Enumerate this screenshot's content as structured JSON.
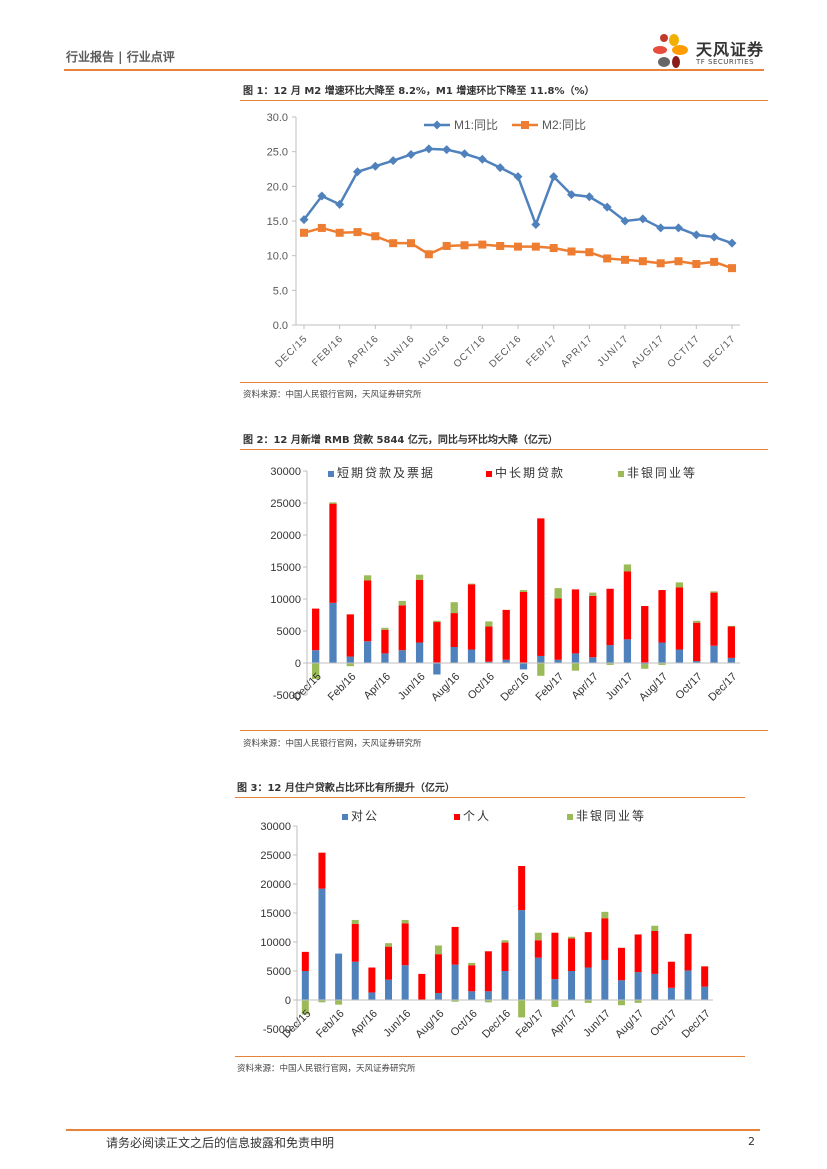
{
  "header": {
    "breadcrumb": "行业报告 | 行业点评",
    "logo_cn": "天风证券",
    "logo_en": "TF SECURITIES"
  },
  "footer": {
    "disclaimer": "请务必阅读正文之后的信息披露和免责申明",
    "page": "2"
  },
  "colors": {
    "accent": "#e8823a",
    "blue": "#4f81bd",
    "orange": "#ed7d31",
    "red": "#ff0000",
    "green": "#9bbb59"
  },
  "figures": [
    {
      "title": "图 1：12 月 M2 增速环比大降至 8.2%，M1 增速环比下降至 11.8%（%）",
      "source": "资料来源：中国人民银行官网，天风证券研究所"
    },
    {
      "title": "图 2：12 月新增 RMB 贷款 5844 亿元，同比与环比均大降（亿元）",
      "source": "资料来源：中国人民银行官网，天风证券研究所"
    },
    {
      "title": "图 3：12 月住户贷款占比环比有所提升（亿元）",
      "source": "资料来源：中国人民银行官网，天风证券研究所"
    }
  ],
  "chart_data": [
    {
      "type": "line",
      "title": "",
      "x_tick_labels": [
        "DEC/15",
        "FEB/16",
        "APR/16",
        "JUN/16",
        "AUG/16",
        "OCT/16",
        "DEC/16",
        "FEB/17",
        "APR/17",
        "JUN/17",
        "AUG/17",
        "OCT/17",
        "DEC/17"
      ],
      "y_tick_labels": [
        "0.0",
        "5.0",
        "10.0",
        "15.0",
        "20.0",
        "25.0",
        "30.0"
      ],
      "ylim": [
        0,
        30
      ],
      "series": [
        {
          "name": "M1:同比",
          "values": [
            15.2,
            18.6,
            17.4,
            22.1,
            22.9,
            23.7,
            24.6,
            25.4,
            25.3,
            24.7,
            23.9,
            22.7,
            21.4,
            14.5,
            21.4,
            18.8,
            18.5,
            17.0,
            15.0,
            15.3,
            14.0,
            14.0,
            13.0,
            12.7,
            11.8
          ]
        },
        {
          "name": "M2:同比",
          "values": [
            13.3,
            14.0,
            13.3,
            13.4,
            12.8,
            11.8,
            11.8,
            10.2,
            11.4,
            11.5,
            11.6,
            11.4,
            11.3,
            11.3,
            11.1,
            10.6,
            10.5,
            9.6,
            9.4,
            9.2,
            8.9,
            9.2,
            8.8,
            9.1,
            8.2
          ]
        }
      ]
    },
    {
      "type": "bar",
      "stacked": true,
      "x_tick_labels": [
        "Dec/15",
        "Feb/16",
        "Apr/16",
        "Jun/16",
        "Aug/16",
        "Oct/16",
        "Dec/16",
        "Feb/17",
        "Apr/17",
        "Jun/17",
        "Aug/17",
        "Oct/17",
        "Dec/17"
      ],
      "y_tick_labels": [
        "-5000",
        "0",
        "5000",
        "10000",
        "15000",
        "20000",
        "25000",
        "30000"
      ],
      "ylim": [
        -5000,
        30000
      ],
      "series": [
        {
          "name": "短期贷款及票据",
          "values": [
            2000,
            9400,
            1000,
            3400,
            1500,
            2000,
            3200,
            -1800,
            2500,
            2100,
            200,
            500,
            -1000,
            1100,
            500,
            1500,
            900,
            2800,
            3700,
            -200,
            3200,
            2100,
            300,
            2700,
            800
          ]
        },
        {
          "name": "中长期贷款",
          "values": [
            6500,
            15500,
            6600,
            9500,
            3700,
            7000,
            9800,
            6400,
            5300,
            10200,
            5500,
            7800,
            11100,
            21500,
            9600,
            10000,
            9600,
            8800,
            10600,
            8900,
            8200,
            9700,
            6000,
            8300,
            4900
          ]
        },
        {
          "name": "非银同业等",
          "values": [
            -2500,
            200,
            -500,
            800,
            300,
            700,
            800,
            200,
            1700,
            100,
            800,
            -100,
            300,
            -2000,
            1600,
            -1200,
            500,
            -300,
            1100,
            -700,
            -300,
            800,
            300,
            200,
            100
          ]
        }
      ]
    },
    {
      "type": "bar",
      "stacked": true,
      "x_tick_labels": [
        "Dec/15",
        "Feb/16",
        "Apr/16",
        "Jun/16",
        "Aug/16",
        "Oct/16",
        "Dec/16",
        "Feb/17",
        "Apr/17",
        "Jun/17",
        "Aug/17",
        "Oct/17",
        "Dec/17"
      ],
      "y_tick_labels": [
        "-5000",
        "0",
        "5000",
        "10000",
        "15000",
        "20000",
        "25000",
        "30000"
      ],
      "ylim": [
        -5000,
        30000
      ],
      "series": [
        {
          "name": "对公",
          "values": [
            5000,
            19200,
            8000,
            6600,
            1300,
            3500,
            6000,
            0,
            1200,
            6100,
            1500,
            1500,
            5000,
            15500,
            7300,
            3600,
            5000,
            5600,
            6900,
            3400,
            4800,
            4500,
            2100,
            5100,
            2300
          ]
        },
        {
          "name": "个人",
          "values": [
            3300,
            6200,
            0,
            6500,
            4300,
            5700,
            7200,
            4500,
            6700,
            6500,
            4500,
            6900,
            4900,
            7600,
            3000,
            8000,
            5600,
            6100,
            7200,
            5600,
            6500,
            7400,
            4500,
            6300,
            3500
          ]
        },
        {
          "name": "非银同业等",
          "values": [
            -2500,
            -400,
            -800,
            700,
            0,
            600,
            600,
            0,
            1500,
            -300,
            400,
            -400,
            400,
            -3000,
            1300,
            -1200,
            300,
            -500,
            1100,
            -900,
            -500,
            900,
            0,
            0,
            0
          ]
        }
      ]
    }
  ]
}
